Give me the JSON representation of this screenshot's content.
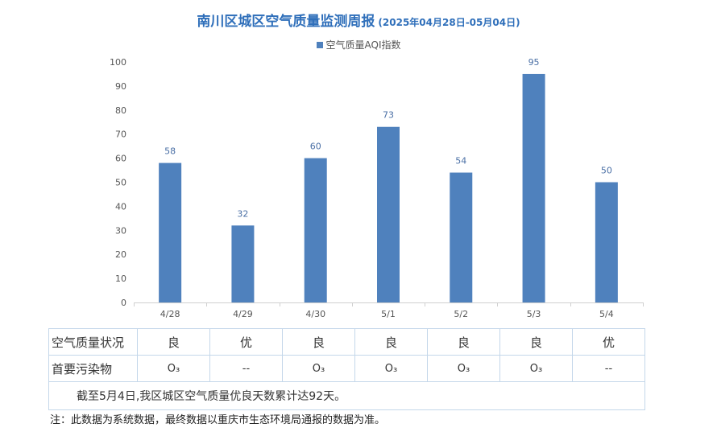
{
  "header": {
    "title": "南川区城区空气质量监测周报",
    "subtitle": "(2025年04月28日-05月04日)"
  },
  "chart_data": {
    "type": "bar",
    "categories": [
      "4/28",
      "4/29",
      "4/30",
      "5/1",
      "5/2",
      "5/3",
      "5/4"
    ],
    "series": [
      {
        "name": "空气质量AQI指数",
        "values": [
          58,
          32,
          60,
          73,
          54,
          95,
          50
        ]
      }
    ],
    "ylim": [
      0,
      100
    ],
    "yticks": [
      0,
      10,
      20,
      30,
      40,
      50,
      60,
      70,
      80,
      90,
      100
    ],
    "grid": false,
    "legend_position": "top-center",
    "bar_color": "#4f81bd",
    "label_color": "#4a6fa5"
  },
  "table": {
    "row1_label": "空气质量状况",
    "status": [
      "良",
      "优",
      "良",
      "良",
      "良",
      "良",
      "优"
    ],
    "row2_label": "首要污染物",
    "pollutants": [
      "O₃",
      "--",
      "O₃",
      "O₃",
      "O₃",
      "O₃",
      "--"
    ],
    "summary": "截至5月4日,我区城区空气质量优良天数累计达92天。"
  },
  "footer": {
    "note": "注：此数据为系统数据，最终数据以重庆市生态环境局通报的数据为准。"
  }
}
